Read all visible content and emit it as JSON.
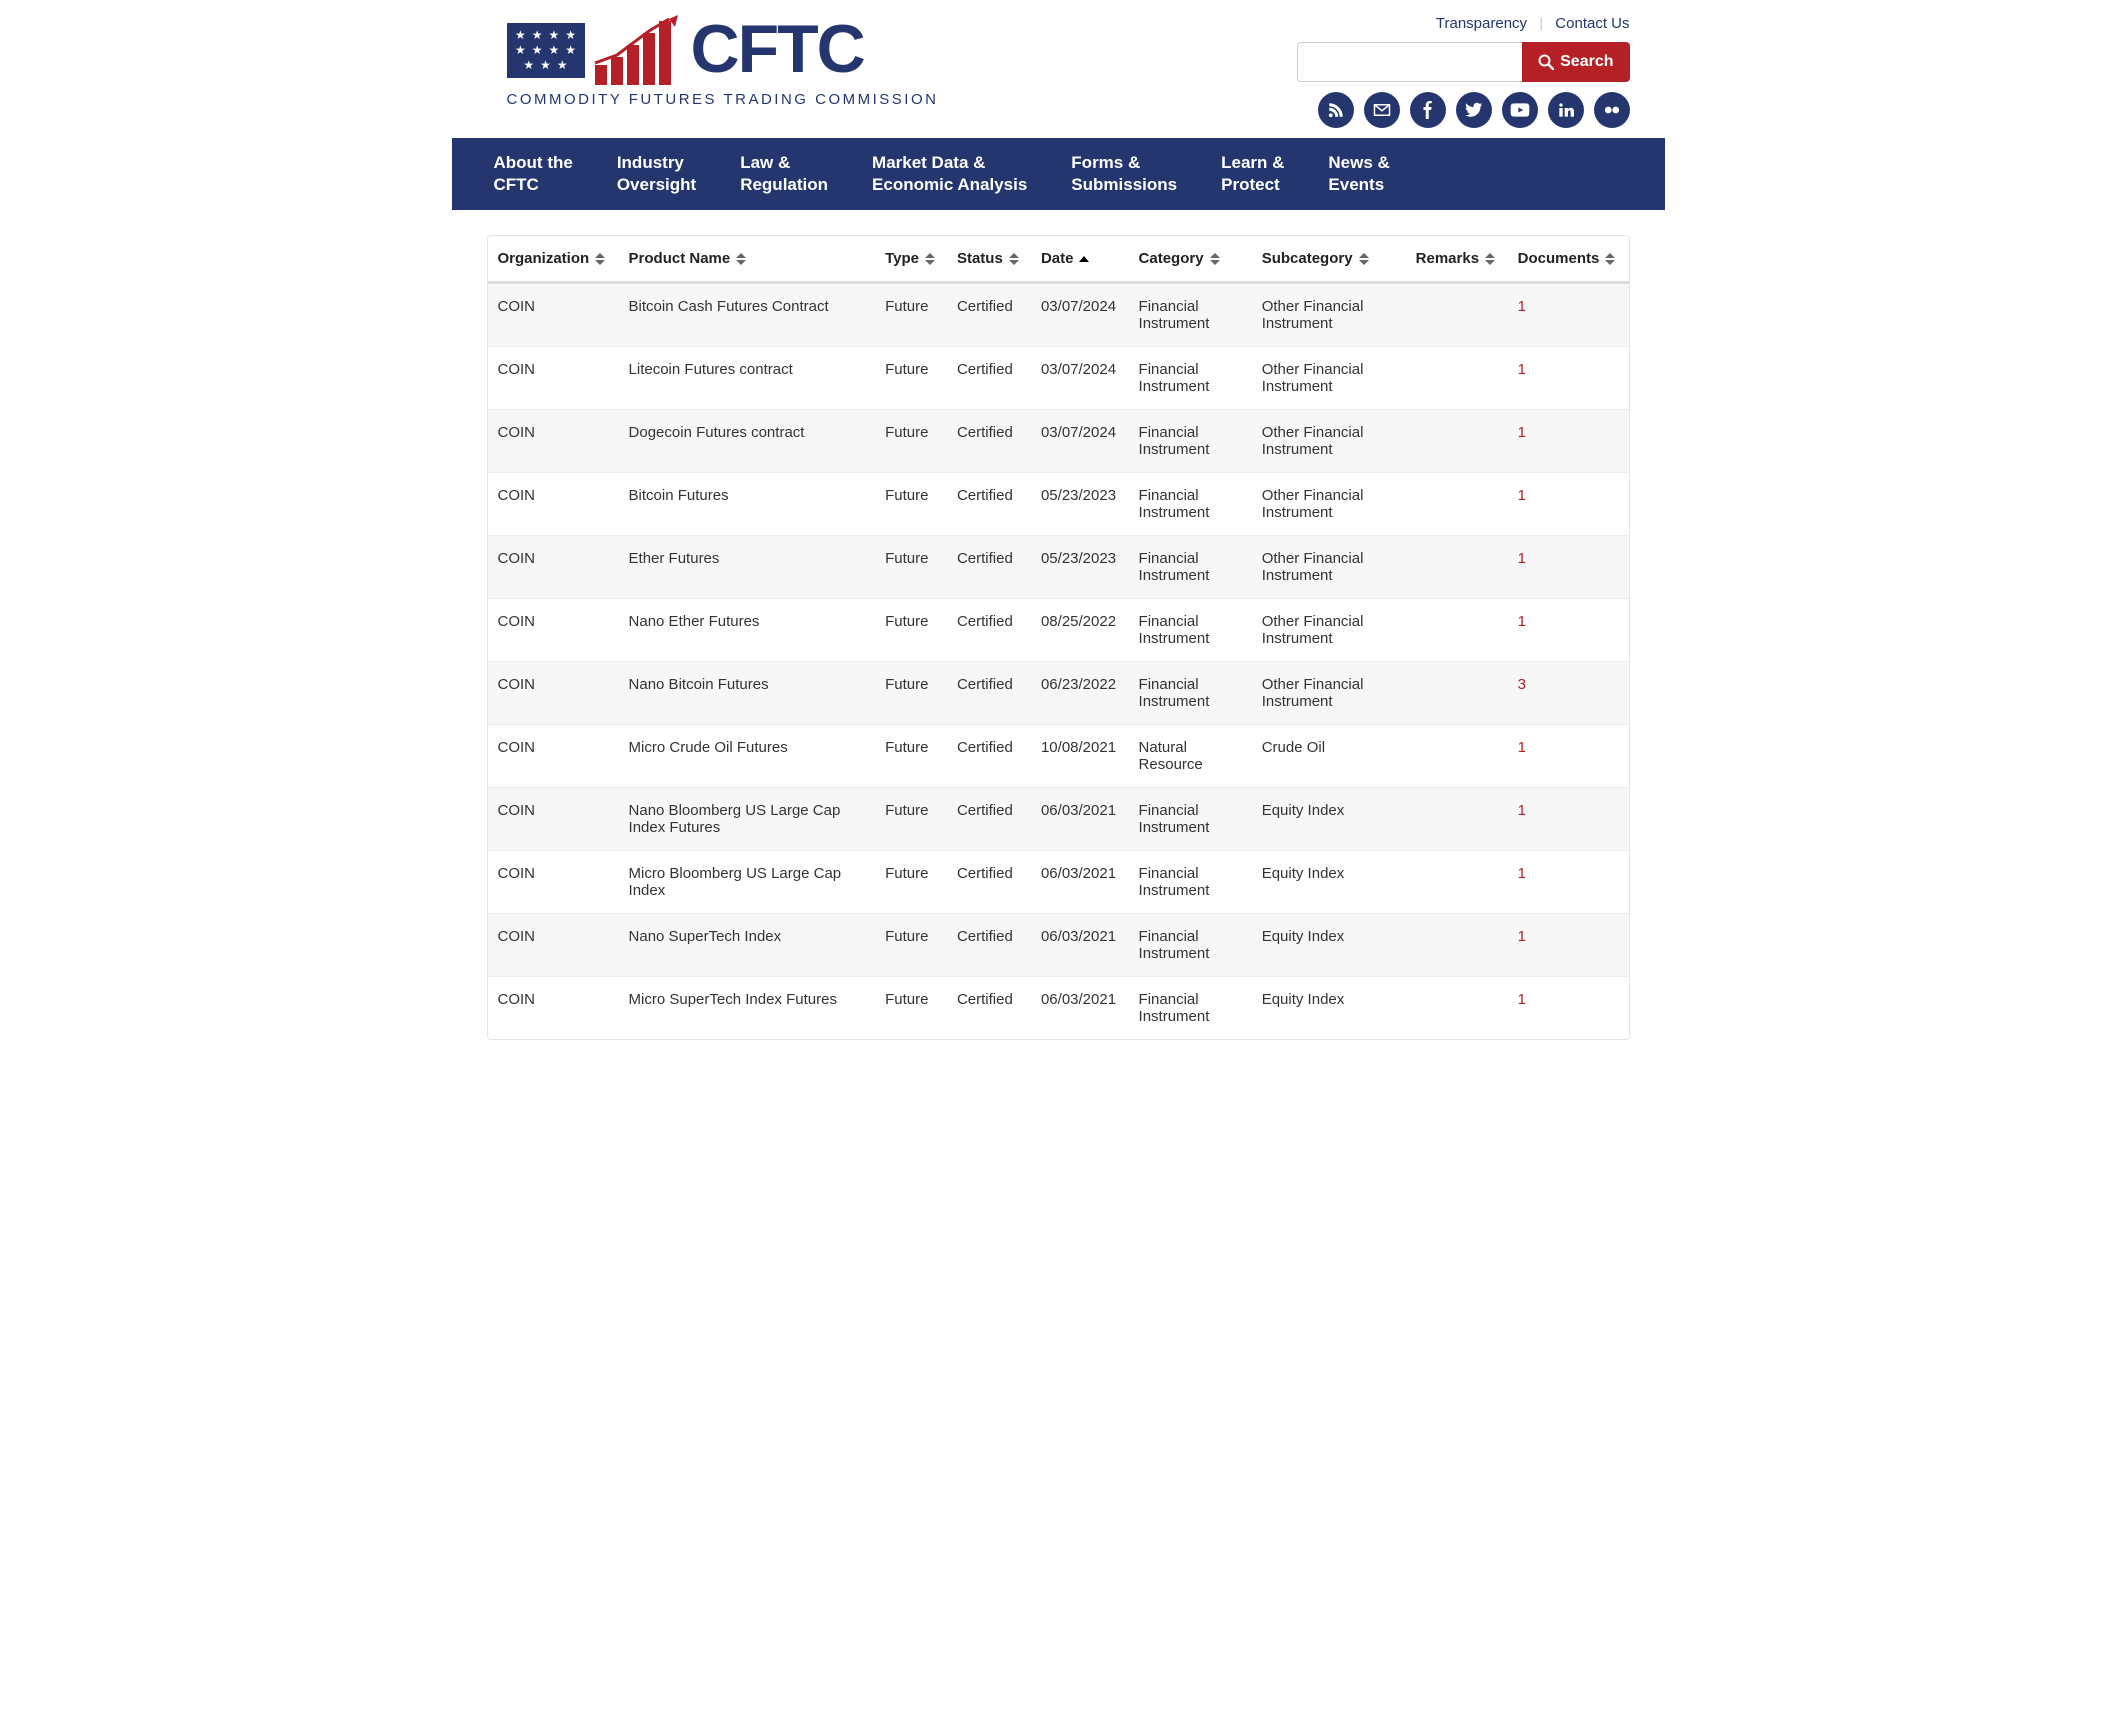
{
  "header": {
    "abbr": "CFTC",
    "tagline": "COMMODITY FUTURES TRADING COMMISSION",
    "top_links": {
      "transparency": "Transparency",
      "contact": "Contact Us"
    },
    "search_button": "Search",
    "logo_colors": {
      "navy": "#25366f",
      "red": "#b42025",
      "white": "#ffffff"
    },
    "social": [
      "rss",
      "email",
      "facebook",
      "twitter",
      "youtube",
      "linkedin",
      "flickr"
    ]
  },
  "nav": [
    "About the\nCFTC",
    "Industry\nOversight",
    "Law &\nRegulation",
    "Market Data &\nEconomic Analysis",
    "Forms &\nSubmissions",
    "Learn &\nProtect",
    "News &\nEvents"
  ],
  "table": {
    "columns": [
      {
        "key": "org",
        "label": "Organization",
        "sortable": true
      },
      {
        "key": "product",
        "label": "Product Name",
        "sortable": true
      },
      {
        "key": "type",
        "label": "Type",
        "sortable": true
      },
      {
        "key": "status",
        "label": "Status",
        "sortable": true
      },
      {
        "key": "date",
        "label": "Date",
        "sortable": true,
        "sorted": "desc"
      },
      {
        "key": "category",
        "label": "Category",
        "sortable": true
      },
      {
        "key": "subcategory",
        "label": "Subcategory",
        "sortable": true
      },
      {
        "key": "remarks",
        "label": "Remarks",
        "sortable": true
      },
      {
        "key": "documents",
        "label": "Documents",
        "sortable": true
      }
    ],
    "rows": [
      {
        "org": "COIN",
        "product": "Bitcoin Cash Futures Contract",
        "type": "Future",
        "status": "Certified",
        "date": "03/07/2024",
        "category": "Financial Instrument",
        "subcategory": "Other Financial Instrument",
        "remarks": "",
        "documents": "1"
      },
      {
        "org": "COIN",
        "product": "Litecoin Futures contract",
        "type": "Future",
        "status": "Certified",
        "date": "03/07/2024",
        "category": "Financial Instrument",
        "subcategory": "Other Financial Instrument",
        "remarks": "",
        "documents": "1"
      },
      {
        "org": "COIN",
        "product": "Dogecoin Futures contract",
        "type": "Future",
        "status": "Certified",
        "date": "03/07/2024",
        "category": "Financial Instrument",
        "subcategory": "Other Financial Instrument",
        "remarks": "",
        "documents": "1"
      },
      {
        "org": "COIN",
        "product": "Bitcoin Futures",
        "type": "Future",
        "status": "Certified",
        "date": "05/23/2023",
        "category": "Financial Instrument",
        "subcategory": "Other Financial Instrument",
        "remarks": "",
        "documents": "1"
      },
      {
        "org": "COIN",
        "product": "Ether Futures",
        "type": "Future",
        "status": "Certified",
        "date": "05/23/2023",
        "category": "Financial Instrument",
        "subcategory": "Other Financial Instrument",
        "remarks": "",
        "documents": "1"
      },
      {
        "org": "COIN",
        "product": "Nano Ether Futures",
        "type": "Future",
        "status": "Certified",
        "date": "08/25/2022",
        "category": "Financial Instrument",
        "subcategory": "Other Financial Instrument",
        "remarks": "",
        "documents": "1"
      },
      {
        "org": "COIN",
        "product": "Nano Bitcoin Futures",
        "type": "Future",
        "status": "Certified",
        "date": "06/23/2022",
        "category": "Financial Instrument",
        "subcategory": "Other Financial Instrument",
        "remarks": "",
        "documents": "3"
      },
      {
        "org": "COIN",
        "product": "Micro Crude Oil Futures",
        "type": "Future",
        "status": "Certified",
        "date": "10/08/2021",
        "category": "Natural Resource",
        "subcategory": "Crude Oil",
        "remarks": "",
        "documents": "1"
      },
      {
        "org": "COIN",
        "product": "Nano Bloomberg US Large Cap Index Futures",
        "type": "Future",
        "status": "Certified",
        "date": "06/03/2021",
        "category": "Financial Instrument",
        "subcategory": "Equity Index",
        "remarks": "",
        "documents": "1"
      },
      {
        "org": "COIN",
        "product": "Micro Bloomberg US Large Cap Index",
        "type": "Future",
        "status": "Certified",
        "date": "06/03/2021",
        "category": "Financial Instrument",
        "subcategory": "Equity Index",
        "remarks": "",
        "documents": "1"
      },
      {
        "org": "COIN",
        "product": "Nano SuperTech Index",
        "type": "Future",
        "status": "Certified",
        "date": "06/03/2021",
        "category": "Financial Instrument",
        "subcategory": "Equity Index",
        "remarks": "",
        "documents": "1"
      },
      {
        "org": "COIN",
        "product": "Micro SuperTech Index Futures",
        "type": "Future",
        "status": "Certified",
        "date": "06/03/2021",
        "category": "Financial Instrument",
        "subcategory": "Equity Index",
        "remarks": "",
        "documents": "1"
      }
    ]
  }
}
